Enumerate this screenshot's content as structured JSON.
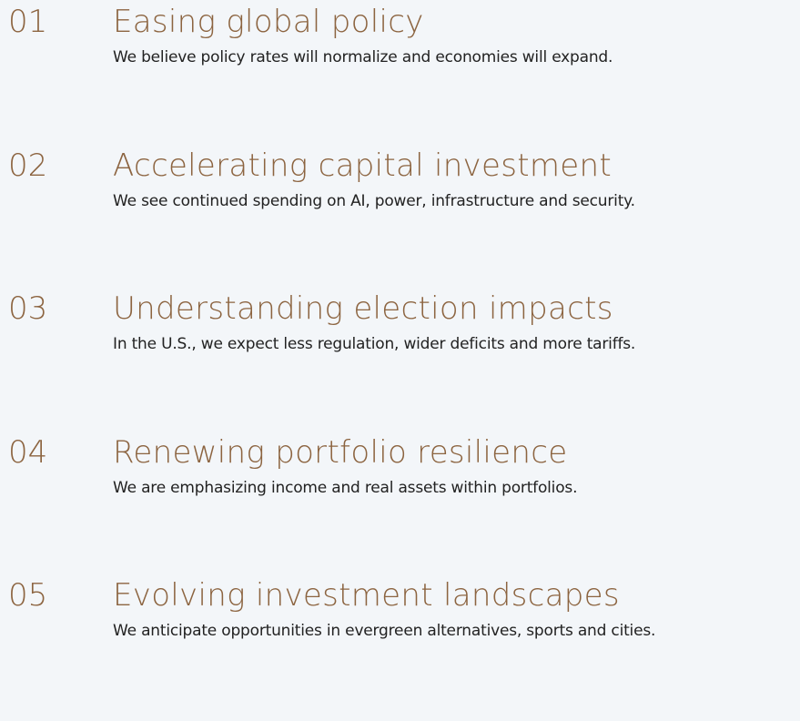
{
  "items": [
    {
      "number": "01",
      "title": "Easing global policy",
      "text": "We believe policy rates will normalize and economies will expand."
    },
    {
      "number": "02",
      "title": "Accelerating capital investment",
      "text": "We see continued spending on AI, power, infrastructure and security."
    },
    {
      "number": "03",
      "title": "Understanding election impacts",
      "text": "In the U.S., we expect less regulation, wider deficits and more tariffs."
    },
    {
      "number": "04",
      "title": "Renewing portfolio resilience",
      "text": "We are emphasizing income and real assets within portfolios."
    },
    {
      "number": "05",
      "title": "Evolving investment landscapes",
      "text": "We anticipate opportunities in evergreen alternatives, sports and cities."
    }
  ]
}
